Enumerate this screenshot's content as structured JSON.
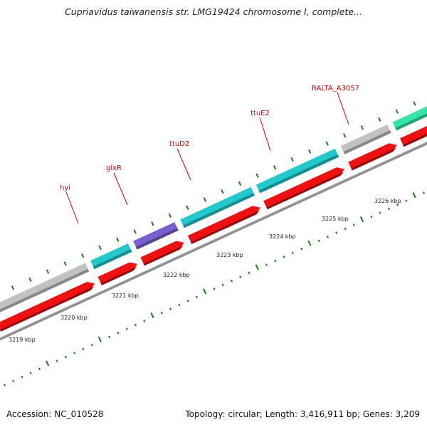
{
  "title": "Cupriavidus taiwanensis str. LMG19424 chromosome I, complete...",
  "footer": {
    "accession": "Accession: NC_010528",
    "summary": "Topology: circular; Length: 3,416,911 bp; Genes: 3,209"
  },
  "colors": {
    "backbone": "#8c8c8c",
    "tick": "#1a7a1a",
    "label": "#cc0000",
    "cds": "#ee1111",
    "gene_cyan": "#22c8cc",
    "gene_purple": "#7a5fd0",
    "gene_gray": "#c2c2c2",
    "gene_green": "#33e6a6"
  },
  "scale_labels": [
    "3219 kbp",
    "3220 kbp",
    "3221 kbp",
    "3222 kbp",
    "3223 kbp",
    "3224 kbp",
    "3225 kbp",
    "3226 kbp"
  ],
  "gene_labels": [
    "hyi",
    "glxR",
    "ttuD2",
    "ttuE2",
    "RALTA_A3057"
  ],
  "genes": [
    {
      "color_key": "gene_gray"
    },
    {
      "color_key": "gene_cyan",
      "label": "hyi"
    },
    {
      "color_key": "gene_purple",
      "label": "glxR"
    },
    {
      "color_key": "gene_cyan",
      "label": "ttuD2"
    },
    {
      "color_key": "gene_cyan",
      "label": "ttuE2"
    },
    {
      "color_key": "gene_gray",
      "label": "RALTA_A3057"
    },
    {
      "color_key": "gene_green"
    }
  ],
  "cds_count": 7
}
